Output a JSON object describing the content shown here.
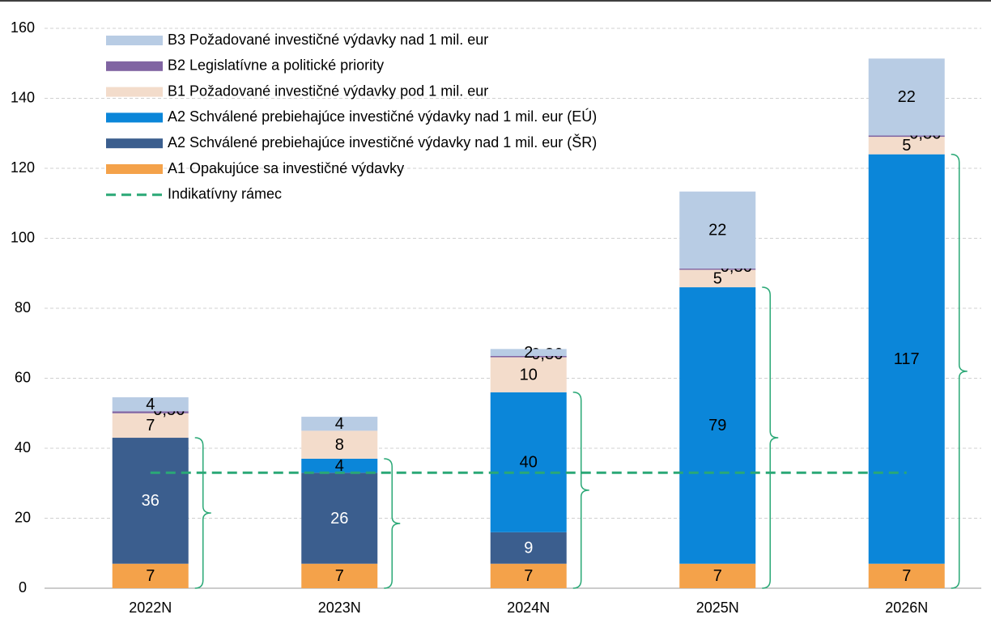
{
  "chart_data": {
    "type": "bar",
    "stacked": true,
    "categories": [
      "2022N",
      "2023N",
      "2024N",
      "2025N",
      "2026N"
    ],
    "ylim": [
      0,
      160
    ],
    "yticks": [
      0,
      20,
      40,
      60,
      80,
      100,
      120,
      140,
      160
    ],
    "grid": true,
    "series": [
      {
        "name": "A1 Opakujúce sa investičné výdavky",
        "color": "#f4a24a",
        "label_color": "#000",
        "values": [
          7,
          7,
          7,
          7,
          7
        ]
      },
      {
        "name": "A2 Schválené prebiehajúce investičné výdavky nad 1 mil. eur (ŠR)",
        "color": "#3b5e8e",
        "label_color": "#fff",
        "values": [
          36,
          26,
          9,
          null,
          null
        ]
      },
      {
        "name": "A2 Schválené prebiehajúce investičné výdavky nad 1 mil. eur (EÚ)",
        "color": "#0b86d9",
        "label_color": "#000",
        "values": [
          null,
          4,
          40,
          79,
          117
        ]
      },
      {
        "name": "B1 Požadované investičné výdavky pod 1 mil. eur",
        "color": "#f3dccb",
        "label_color": "#000",
        "values": [
          7,
          8,
          10,
          5,
          5
        ]
      },
      {
        "name": "B2 Legislatívne a politické priority",
        "color": "#8064a2",
        "label_color": "#000",
        "values": [
          0.56,
          null,
          0.36,
          0.36,
          0.36
        ],
        "value_labels": [
          "0,56",
          null,
          "0,36",
          "0,36",
          "0,36"
        ]
      },
      {
        "name": "B3 Požadované investičné výdavky nad 1 mil. eur",
        "color": "#b8cce4",
        "label_color": "#000",
        "values": [
          4,
          4,
          2,
          22,
          22
        ]
      },
      {
        "name": "Indikatívny rámec",
        "type": "line",
        "color": "#2aa876",
        "dashed": true,
        "values": [
          33,
          33,
          33,
          33,
          33
        ]
      }
    ]
  }
}
